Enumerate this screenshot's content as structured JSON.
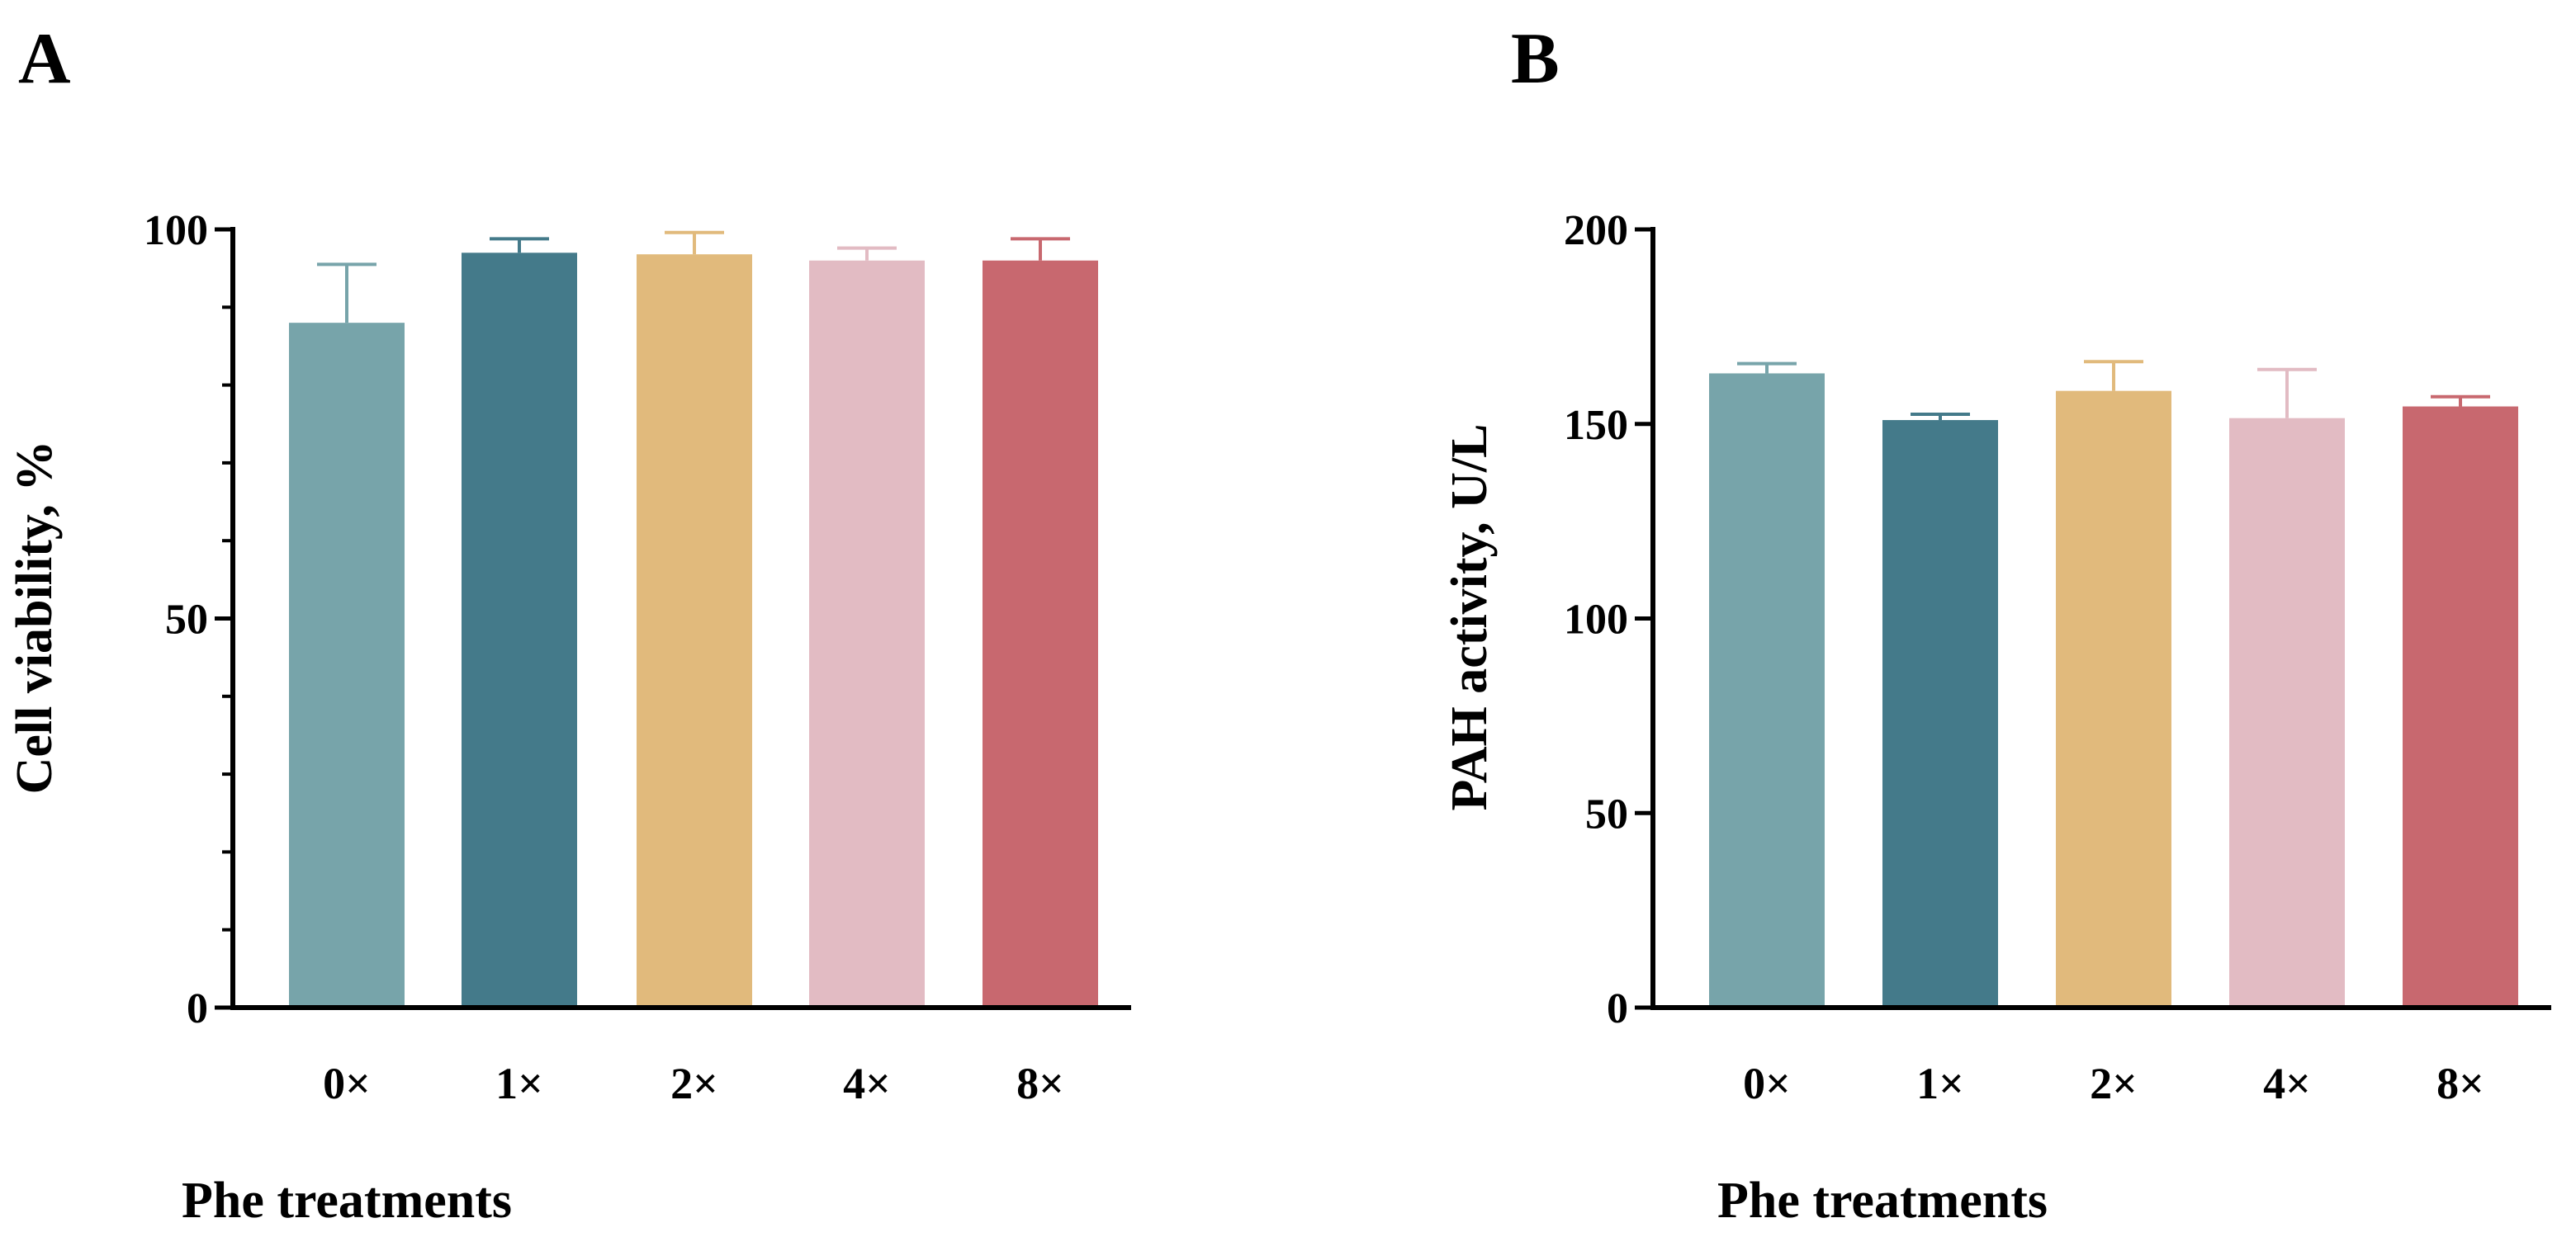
{
  "chart_data": [
    {
      "panel_label": "A",
      "type": "bar",
      "ylabel": "Cell viability, %",
      "xlabel": "Phe treatments",
      "categories": [
        "0×",
        "1×",
        "2×",
        "4×",
        "8×"
      ],
      "values": [
        88,
        97,
        96.8,
        96,
        96
      ],
      "errors": [
        7.5,
        1.8,
        2.8,
        1.6,
        2.8
      ],
      "colors": [
        "#77a4aa",
        "#447a8a",
        "#e1ba7c",
        "#e2bbc3",
        "#c8686f"
      ],
      "ylim": [
        0,
        100
      ],
      "ytick_labels": [
        "0",
        "50",
        "100"
      ],
      "minor_tick_step": 10
    },
    {
      "panel_label": "B",
      "type": "bar",
      "ylabel": "PAH activity, U/L",
      "xlabel": "Phe treatments",
      "categories": [
        "0×",
        "1×",
        "2×",
        "4×",
        "8×"
      ],
      "values": [
        163,
        151,
        158.5,
        151.5,
        154.5
      ],
      "errors": [
        2.5,
        1.5,
        7.5,
        12.5,
        2.5
      ],
      "colors": [
        "#77a4aa",
        "#447a8a",
        "#e1ba7c",
        "#e2bbc3",
        "#c8686f"
      ],
      "ylim": [
        0,
        200
      ],
      "ytick_labels": [
        "0",
        "50",
        "100",
        "150",
        "200"
      ]
    }
  ]
}
